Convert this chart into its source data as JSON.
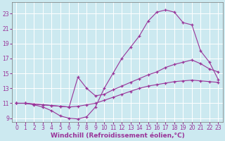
{
  "background_color": "#cce9f0",
  "grid_color": "#ffffff",
  "line_color": "#993399",
  "xlabel": "Windchill (Refroidissement éolien,°C)",
  "xlabel_fontsize": 6.5,
  "xtick_fontsize": 5.5,
  "ytick_fontsize": 5.5,
  "ylim": [
    8.5,
    24.5
  ],
  "xlim": [
    -0.5,
    23.5
  ],
  "yticks": [
    9,
    11,
    13,
    15,
    17,
    19,
    21,
    23
  ],
  "xticks": [
    0,
    1,
    2,
    3,
    4,
    5,
    6,
    7,
    8,
    9,
    10,
    11,
    12,
    13,
    14,
    15,
    16,
    17,
    18,
    19,
    20,
    21,
    22,
    23
  ],
  "curve1_x": [
    0,
    1,
    2,
    3,
    4,
    5,
    6,
    7,
    8,
    9,
    10,
    11,
    12,
    13,
    14,
    15,
    16,
    17,
    18,
    19,
    20,
    21,
    22,
    23
  ],
  "curve1_y": [
    11.0,
    11.0,
    10.8,
    10.5,
    10.0,
    9.3,
    9.0,
    8.9,
    9.2,
    10.5,
    13.0,
    15.0,
    17.0,
    18.5,
    20.0,
    22.0,
    23.2,
    23.5,
    23.2,
    21.8,
    21.5,
    18.0,
    16.5,
    14.2
  ],
  "curve2_x": [
    0,
    1,
    2,
    3,
    4,
    5,
    6,
    7,
    8,
    9,
    10,
    11,
    12,
    13,
    14,
    15,
    16,
    17,
    18,
    19,
    20,
    21,
    22,
    23
  ],
  "curve2_y": [
    11.0,
    11.0,
    10.9,
    10.8,
    10.7,
    10.6,
    10.5,
    14.5,
    13.0,
    12.0,
    12.2,
    12.8,
    13.3,
    13.8,
    14.3,
    14.8,
    15.2,
    15.8,
    16.2,
    16.5,
    16.8,
    16.3,
    15.6,
    15.2
  ],
  "curve3_x": [
    0,
    1,
    2,
    3,
    4,
    5,
    6,
    7,
    8,
    9,
    10,
    11,
    12,
    13,
    14,
    15,
    16,
    17,
    18,
    19,
    20,
    21,
    22,
    23
  ],
  "curve3_y": [
    11.0,
    11.0,
    10.9,
    10.8,
    10.7,
    10.6,
    10.5,
    10.6,
    10.8,
    11.0,
    11.4,
    11.8,
    12.2,
    12.6,
    13.0,
    13.3,
    13.5,
    13.7,
    13.9,
    14.0,
    14.1,
    14.0,
    13.9,
    13.8
  ]
}
